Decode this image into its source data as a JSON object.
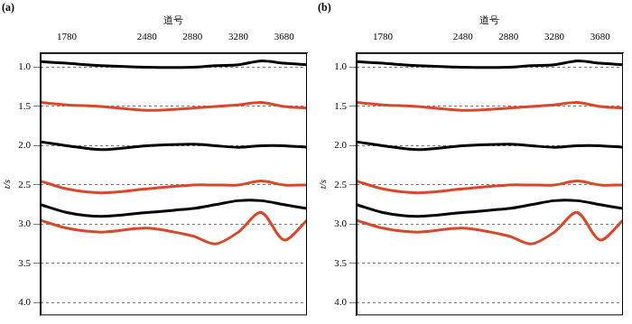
{
  "chart_data": [
    {
      "type": "line",
      "title": "(a)",
      "x_label": "道号",
      "y_label": "t/s",
      "x": [
        1550,
        1780,
        2080,
        2480,
        2880,
        3080,
        3280,
        3480,
        3680,
        3880
      ],
      "series": [
        {
          "color": "#000000",
          "values": [
            0.93,
            0.95,
            0.98,
            1.0,
            1.0,
            0.98,
            0.97,
            0.92,
            0.95,
            0.97
          ]
        },
        {
          "color": "#d9472b",
          "values": [
            1.45,
            1.48,
            1.5,
            1.55,
            1.52,
            1.5,
            1.48,
            1.45,
            1.5,
            1.52
          ]
        },
        {
          "color": "#000000",
          "values": [
            1.95,
            2.0,
            2.05,
            2.0,
            1.98,
            2.0,
            2.02,
            2.0,
            2.0,
            2.02
          ]
        },
        {
          "color": "#d9472b",
          "values": [
            2.45,
            2.55,
            2.6,
            2.55,
            2.5,
            2.5,
            2.5,
            2.45,
            2.5,
            2.5
          ]
        },
        {
          "color": "#000000",
          "values": [
            2.75,
            2.85,
            2.9,
            2.85,
            2.8,
            2.75,
            2.7,
            2.7,
            2.75,
            2.8
          ]
        },
        {
          "color": "#d9472b",
          "values": [
            2.95,
            3.05,
            3.1,
            3.05,
            3.15,
            3.25,
            3.1,
            2.85,
            3.2,
            2.95
          ]
        }
      ],
      "xlim": [
        1550,
        3880
      ],
      "xticks": [
        1780,
        2480,
        2880,
        3280,
        3680
      ],
      "ylim": [
        0.82,
        4.16
      ],
      "yticks": [
        {
          "value": 1,
          "label": "1.0"
        },
        1.5,
        {
          "value": 2,
          "label": "2.0"
        },
        2.5,
        {
          "value": 3,
          "label": "3.0"
        },
        3.5,
        {
          "value": 4,
          "label": "4.0"
        }
      ],
      "grid": true
    },
    {
      "type": "line",
      "title": "(b)",
      "x_label": "道号",
      "y_label": "t/s",
      "x": [
        1550,
        1780,
        2080,
        2480,
        2880,
        3080,
        3280,
        3480,
        3680,
        3880
      ],
      "series": [
        {
          "color": "#000000",
          "values": [
            0.93,
            0.95,
            0.98,
            1.0,
            1.0,
            0.98,
            0.97,
            0.92,
            0.95,
            0.97
          ]
        },
        {
          "color": "#d9472b",
          "values": [
            1.45,
            1.48,
            1.5,
            1.55,
            1.52,
            1.5,
            1.48,
            1.45,
            1.5,
            1.52
          ]
        },
        {
          "color": "#000000",
          "values": [
            1.95,
            2.0,
            2.05,
            2.0,
            1.98,
            2.0,
            2.02,
            2.0,
            2.0,
            2.02
          ]
        },
        {
          "color": "#d9472b",
          "values": [
            2.45,
            2.55,
            2.6,
            2.55,
            2.5,
            2.5,
            2.5,
            2.45,
            2.5,
            2.5
          ]
        },
        {
          "color": "#000000",
          "values": [
            2.75,
            2.85,
            2.9,
            2.85,
            2.8,
            2.75,
            2.7,
            2.7,
            2.75,
            2.8
          ]
        },
        {
          "color": "#d9472b",
          "values": [
            2.95,
            3.05,
            3.1,
            3.05,
            3.15,
            3.25,
            3.1,
            2.85,
            3.2,
            2.95
          ]
        }
      ],
      "xlim": [
        1550,
        3880
      ],
      "xticks": [
        1780,
        2480,
        2880,
        3280,
        3680
      ],
      "ylim": [
        0.82,
        4.16
      ],
      "yticks": [
        {
          "value": 1,
          "label": "1.0"
        },
        1.5,
        {
          "value": 2,
          "label": "2.0"
        },
        2.5,
        {
          "value": 3,
          "label": "3.0"
        },
        3.5,
        {
          "value": 4,
          "label": "4.0"
        }
      ],
      "grid": true
    }
  ]
}
